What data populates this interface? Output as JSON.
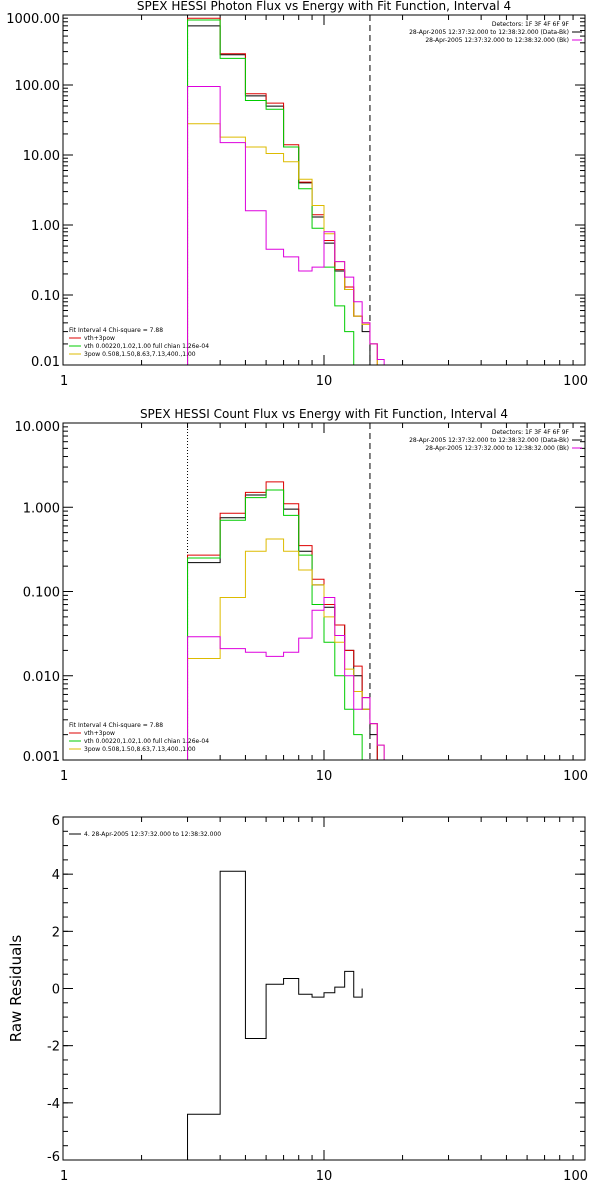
{
  "chart_data": [
    {
      "type": "line",
      "title": "SPEX HESSI Photon Flux vs Energy with Fit Function, Interval 4",
      "xscale": "log",
      "yscale": "log",
      "xlim": [
        1,
        100
      ],
      "ylim": [
        0.01,
        1000
      ],
      "xticks": [
        1,
        10,
        100
      ],
      "xtick_labels": [
        "1",
        "10",
        "100"
      ],
      "yticks": [
        0.01,
        0.1,
        1,
        10,
        100,
        1000
      ],
      "ytick_labels": [
        "0.01",
        "0.10",
        "1.00",
        "10.00",
        "100.00",
        "1000.00"
      ],
      "vlines": [
        {
          "x": 3,
          "style": "dotted",
          "color": "#000000"
        },
        {
          "x": 15,
          "style": "dashed",
          "color": "#000000"
        }
      ],
      "legend_right": [
        {
          "text": "Detectors: 1F 3F 4F 6F 9F",
          "color": ""
        },
        {
          "text": "28-Apr-2005 12:37:32.000 to 12:38:32.000 (Data-Bk)",
          "color": "#000000"
        },
        {
          "text": "28-Apr-2005 12:37:32.000 to 12:38:32.000 (Bk)",
          "color": "#dd00dd"
        }
      ],
      "legend_left": [
        {
          "text": "Fit Interval 4   Chi-square = 7.88",
          "color": ""
        },
        {
          "text": "vth+3pow",
          "color": "#dd0000"
        },
        {
          "text": "vth 0.00220,1.02,1.00  full chian 1.26e-04",
          "color": "#00cc00"
        },
        {
          "text": "3pow 0.508,1.50,8.63,7.13,400.,1.00",
          "color": "#ddbb00"
        }
      ],
      "bin_edges": [
        3,
        4,
        5,
        6,
        7,
        8,
        9,
        10,
        11,
        12,
        13,
        14,
        15,
        16,
        17,
        18
      ],
      "series": [
        {
          "color": "#000000",
          "values": [
            700,
            270,
            70,
            50,
            13,
            4,
            1.3,
            0.55,
            0.22,
            0.12,
            0.05,
            0.03
          ]
        },
        {
          "color": "#dd0000",
          "values": [
            900,
            280,
            75,
            55,
            14,
            4.1,
            1.4,
            0.6,
            0.23,
            0.13,
            0.05,
            0.04,
            0.02
          ]
        },
        {
          "color": "#00cc00",
          "values": [
            850,
            240,
            60,
            45,
            13,
            3.3,
            0.9,
            0.25,
            0.07,
            0.03,
            0.01
          ]
        },
        {
          "color": "#ddbb00",
          "values": [
            28,
            18,
            13,
            10.5,
            8,
            4.5,
            1.9,
            0.75,
            0.3,
            0.12,
            0.05,
            0.038,
            0.02,
            0.01
          ]
        },
        {
          "color": "#dd00dd",
          "values": [
            95,
            15,
            1.6,
            0.45,
            0.35,
            0.22,
            0.25,
            0.8,
            0.3,
            0.18,
            0.08,
            0.04,
            0.02,
            0.012
          ]
        }
      ]
    },
    {
      "type": "line",
      "title": "SPEX HESSI Count Flux vs Energy with Fit Function, Interval 4",
      "xscale": "log",
      "yscale": "log",
      "xlim": [
        1,
        100
      ],
      "ylim": [
        0.001,
        10
      ],
      "xticks": [
        1,
        10,
        100
      ],
      "xtick_labels": [
        "1",
        "10",
        "100"
      ],
      "yticks": [
        0.001,
        0.01,
        0.1,
        1,
        10
      ],
      "ytick_labels": [
        "0.001",
        "0.010",
        "0.100",
        "1.000",
        "10.000"
      ],
      "vlines": [
        {
          "x": 3,
          "style": "dotted",
          "color": "#000000"
        },
        {
          "x": 15,
          "style": "dashed",
          "color": "#000000"
        }
      ],
      "legend_right": [
        {
          "text": "Detectors: 1F 3F 4F 6F 9F",
          "color": ""
        },
        {
          "text": "28-Apr-2005 12:37:32.000 to 12:38:32.000 (Data-Bk)",
          "color": "#000000"
        },
        {
          "text": "28-Apr-2005 12:37:32.000 to 12:38:32.000 (Bk)",
          "color": "#dd00dd"
        }
      ],
      "legend_left": [
        {
          "text": "Fit Interval 4   Chi-square = 7.88",
          "color": ""
        },
        {
          "text": "vth+3pow",
          "color": "#dd0000"
        },
        {
          "text": "vth 0.00220,1.02,1.00  full chian 1.26e-04",
          "color": "#00cc00"
        },
        {
          "text": "3pow 0.508,1.50,8.63,7.13,400.,1.00",
          "color": "#ddbb00"
        }
      ],
      "bin_edges": [
        3,
        4,
        5,
        6,
        7,
        8,
        9,
        10,
        11,
        12,
        13,
        14,
        15,
        16,
        17,
        18
      ],
      "series": [
        {
          "color": "#000000",
          "values": [
            0.22,
            0.75,
            1.4,
            1.6,
            0.95,
            0.3,
            0.12,
            0.065,
            0.04,
            0.02,
            0.01,
            0.004,
            0.002
          ]
        },
        {
          "color": "#dd0000",
          "values": [
            0.27,
            0.85,
            1.5,
            2.0,
            1.1,
            0.35,
            0.14,
            0.07,
            0.04,
            0.02,
            0.013,
            0.0055,
            0.0027
          ]
        },
        {
          "color": "#00cc00",
          "values": [
            0.25,
            0.7,
            1.3,
            1.6,
            0.8,
            0.27,
            0.07,
            0.025,
            0.01,
            0.004,
            0.002,
            0.001
          ]
        },
        {
          "color": "#ddbb00",
          "values": [
            0.016,
            0.085,
            0.3,
            0.42,
            0.3,
            0.18,
            0.12,
            0.05,
            0.025,
            0.012,
            0.0065,
            0.004,
            0.0027,
            0.0015,
            0.001
          ]
        },
        {
          "color": "#dd00dd",
          "values": [
            0.029,
            0.021,
            0.019,
            0.017,
            0.019,
            0.028,
            0.06,
            0.085,
            0.03,
            0.01,
            0.004,
            0.0055,
            0.0027,
            0.0015,
            0.001
          ]
        }
      ]
    },
    {
      "type": "line",
      "title": "",
      "ylabel": "Raw Residuals",
      "xscale": "log",
      "yscale": "linear",
      "xlim": [
        1,
        100
      ],
      "ylim": [
        -6,
        6
      ],
      "xticks": [
        1,
        10,
        100
      ],
      "xtick_labels": [
        "1",
        "10",
        "100"
      ],
      "yticks": [
        -6,
        -4,
        -2,
        0,
        2,
        4,
        6
      ],
      "ytick_labels": [
        "-6",
        "-4",
        "-2",
        "0",
        "2",
        "4",
        "6"
      ],
      "legend_left": [
        {
          "text": "4. 28-Apr-2005 12:37:32.000 to 12:38:32.000",
          "color": "#000000"
        }
      ],
      "bin_edges": [
        3,
        4,
        5,
        6,
        7,
        8,
        9,
        10,
        11,
        12,
        13,
        14,
        15
      ],
      "series": [
        {
          "color": "#000000",
          "values": [
            -4.4,
            4.1,
            -1.75,
            0.15,
            0.35,
            -0.2,
            -0.3,
            -0.15,
            0.05,
            0.6,
            -0.3
          ]
        }
      ]
    }
  ]
}
